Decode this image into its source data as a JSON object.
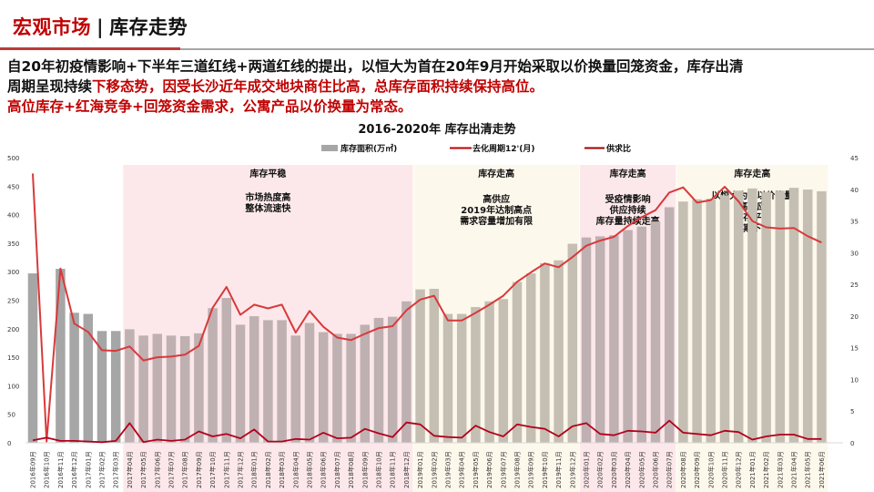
{
  "header": {
    "title_part1": "宏观市场",
    "separator": "|",
    "title_part2": "库存走势"
  },
  "summary": {
    "line1_black": "自20年初疫情影响+下半年三道红线+两道红线的提出，以恒大为首在20年9月开始采取以价换量回笼资金，库存出清",
    "line2_black": "周期呈现持续",
    "line2_red": "下移态势，因受长沙近年成交地块商住比高，总库存面积持续保持高位。",
    "line3_red": "高位库存+红海竞争+回笼资金需求，公寓产品以价换量为常态。"
  },
  "colors": {
    "accent_red": "#c00000",
    "bar_gray": "#a6a6a6",
    "line_red": "#d9393b",
    "line_darkred": "#b3001b",
    "band_pink": "#fce8ea",
    "band_cream": "#fdf8ec"
  },
  "chart_data": {
    "type": "bar+line",
    "title": "2016-2020年 库存出清走势",
    "legend": [
      "库存面积(万㎡)",
      "去化周期12'(月)",
      "供求比"
    ],
    "legend_position": "top",
    "y_left": {
      "label": "库存面积(万㎡)",
      "ticks": [
        0,
        50,
        100,
        150,
        200,
        250,
        300,
        350,
        400,
        450,
        500
      ],
      "range": [
        0,
        500
      ]
    },
    "y_right": {
      "label": "",
      "ticks": [
        0,
        5,
        10,
        15,
        20,
        25,
        30,
        35,
        40,
        45
      ],
      "range": [
        0,
        45
      ]
    },
    "categories": [
      "2016年09月",
      "2016年10月",
      "2016年11月",
      "2016年12月",
      "2017年01月",
      "2017年02月",
      "2017年03月",
      "2017年04月",
      "2017年05月",
      "2017年06月",
      "2017年07月",
      "2017年08月",
      "2017年09月",
      "2017年10月",
      "2017年11月",
      "2017年12月",
      "2018年01月",
      "2018年02月",
      "2018年03月",
      "2018年04月",
      "2018年05月",
      "2018年06月",
      "2018年07月",
      "2018年08月",
      "2018年09月",
      "2018年10月",
      "2018年11月",
      "2018年12月",
      "2019年01月",
      "2019年02月",
      "2019年03月",
      "2019年04月",
      "2019年05月",
      "2019年06月",
      "2019年07月",
      "2019年08月",
      "2019年09月",
      "2019年10月",
      "2019年11月",
      "2019年12月",
      "2020年01月",
      "2020年02月",
      "2020年03月",
      "2020年04月",
      "2020年05月",
      "2020年06月",
      "2020年07月",
      "2020年08月",
      "2020年09月",
      "2020年10月",
      "2020年11月",
      "2020年12月",
      "2021年01月",
      "2021年02月",
      "2021年03月",
      "2021年04月",
      "2021年05月",
      "2021年06月"
    ],
    "series": [
      {
        "name": "库存面积(万㎡)",
        "axis": "left",
        "type": "bar",
        "values": [
          297,
          0,
          305,
          228,
          226,
          196,
          196,
          199,
          188,
          191,
          188,
          187,
          192,
          236,
          254,
          207,
          222,
          215,
          215,
          188,
          210,
          194,
          191,
          191,
          207,
          219,
          221,
          248,
          269,
          270,
          226,
          226,
          238,
          248,
          252,
          282,
          297,
          315,
          320,
          349,
          360,
          362,
          364,
          373,
          379,
          388,
          413,
          423,
          427,
          428,
          434,
          442,
          446,
          440,
          442,
          447,
          444,
          441
        ]
      },
      {
        "name": "去化周期12'(月)",
        "axis": "right",
        "type": "line",
        "values": [
          42.5,
          0.2,
          27.5,
          18.8,
          17.5,
          14.6,
          14.5,
          15.2,
          13.0,
          13.5,
          13.6,
          13.9,
          15.3,
          21.3,
          24.6,
          20.2,
          21.8,
          21.2,
          21.8,
          17.4,
          20.8,
          18.3,
          16.6,
          16.2,
          17.2,
          18.1,
          18.4,
          20.9,
          22.6,
          23.2,
          19.3,
          19.3,
          20.5,
          21.8,
          23.2,
          25.4,
          26.9,
          28.3,
          27.7,
          29.3,
          31.1,
          31.9,
          32.5,
          34.2,
          35.6,
          36.7,
          39.5,
          40.3,
          37.9,
          38.3,
          40.4,
          38.1,
          35.0,
          34.0,
          33.8,
          33.9,
          32.6,
          31.6
        ]
      },
      {
        "name": "供求比",
        "axis": "right",
        "type": "line",
        "values": [
          0.4,
          0.8,
          0.3,
          0.3,
          0.2,
          0.1,
          0.3,
          3.1,
          0.1,
          0.5,
          0.3,
          0.5,
          1.8,
          1.0,
          1.4,
          0.7,
          2.1,
          0.2,
          0.2,
          0.6,
          0.5,
          1.6,
          0.7,
          0.8,
          2.2,
          1.5,
          0.9,
          3.2,
          2.9,
          1.1,
          0.9,
          0.8,
          2.7,
          1.7,
          1.0,
          2.9,
          2.5,
          2.2,
          1.0,
          2.6,
          3.1,
          1.4,
          1.2,
          1.9,
          1.8,
          1.6,
          3.5,
          1.6,
          1.4,
          1.2,
          1.9,
          1.7,
          0.5,
          1.0,
          1.3,
          1.3,
          0.6,
          0.6
        ]
      }
    ],
    "bands": [
      {
        "from": "2017年04月",
        "to": "2018年12月",
        "color": "pink",
        "title": "库存平稳",
        "lines": [
          "市场热度高",
          "整体流速快"
        ]
      },
      {
        "from": "2019年01月",
        "to": "2019年12月",
        "color": "cream",
        "title": "库存走高",
        "lines": [
          "高供应",
          "2019年达制高点",
          "需求容量增加有限"
        ]
      },
      {
        "from": "2020年01月",
        "to": "2020年07月",
        "color": "pink",
        "title": "库存走高",
        "lines": [
          "受疫情影响",
          "供应持续",
          "库存量持续走高"
        ]
      },
      {
        "from": "2020年08月",
        "to": "2021年06月",
        "color": "cream",
        "title": "库存走高",
        "lines": [
          "以恒大为首以价换量",
          "高供应",
          "库存平稳",
          "周期下移"
        ]
      }
    ],
    "grid": false
  }
}
